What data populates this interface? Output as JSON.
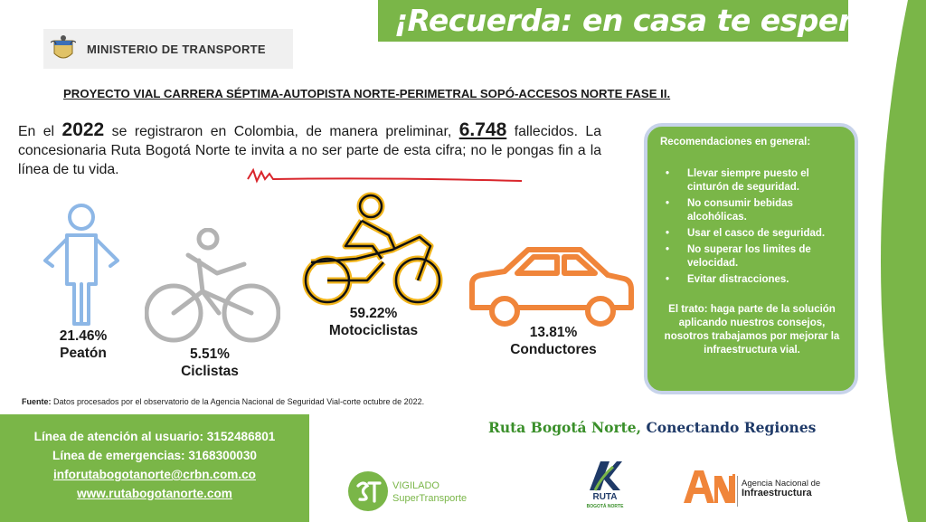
{
  "banner": {
    "title": "¡Recuerda: en casa te esperan!"
  },
  "ministry": {
    "name": "MINISTERIO DE TRANSPORTE"
  },
  "project_title": "PROYECTO VIAL CARRERA SÉPTIMA-AUTOPISTA NORTE-PERIMETRAL SOPÓ-ACCESOS NORTE FASE II.",
  "intro": {
    "p1": "En el ",
    "year": "2022",
    "p2": " se registraron  en Colombia, de manera preliminar, ",
    "deaths": "6.748",
    "p3": " fallecidos. La concesionaria Ruta Bogotá Norte te invita a no ser parte de esta cifra; no le pongas fin a la línea de tu vida."
  },
  "stats": [
    {
      "percent": "21.46%",
      "label": "Peatón"
    },
    {
      "percent": "5.51%",
      "label": "Ciclistas"
    },
    {
      "percent": "59.22%",
      "label": "Motociclistas"
    },
    {
      "percent": "13.81%",
      "label": "Conductores"
    }
  ],
  "recommendations": {
    "title": "Recomendaciones en general:",
    "items": [
      "Llevar siempre puesto  el cinturón de seguridad.",
      "No consumir bebidas alcohólicas.",
      "Usar el casco de seguridad.",
      "No superar los limites de velocidad.",
      "Evitar distracciones."
    ],
    "footer": "El trato: haga parte de la solución aplicando nuestros consejos, nosotros trabajamos por mejorar la infraestructura vial."
  },
  "source": {
    "label": "Fuente:",
    "text": " Datos procesados por el observatorio de la Agencia Nacional de Seguridad Vial-corte octubre de 2022."
  },
  "contact": {
    "line1": "Línea de atención al usuario: 3152486801",
    "line2": "Línea de emergencias:  3168300030",
    "email": "inforutabogotanorte@crbn.com.co",
    "web": "www.rutabogotanorte.com"
  },
  "slogan": {
    "part1": "Ruta Bogotá Norte,",
    "part2": " Conectando Regiones"
  },
  "logos": {
    "vigilado_line1": "VIGILADO",
    "vigilado_line2": "SuperTransporte",
    "ruta_name": "RUTA",
    "ruta_sub": "BOGOTÁ NORTE",
    "ani_line1": "Agencia Nacional de",
    "ani_line2": "Infraestructura"
  },
  "colors": {
    "green": "#7ab648",
    "orange": "#f0853a",
    "moto_yellow": "#f2b51b",
    "pedestrian_blue": "#8db7e6",
    "cyclist_gray": "#b3b3b3",
    "navy": "#1f3a68"
  }
}
